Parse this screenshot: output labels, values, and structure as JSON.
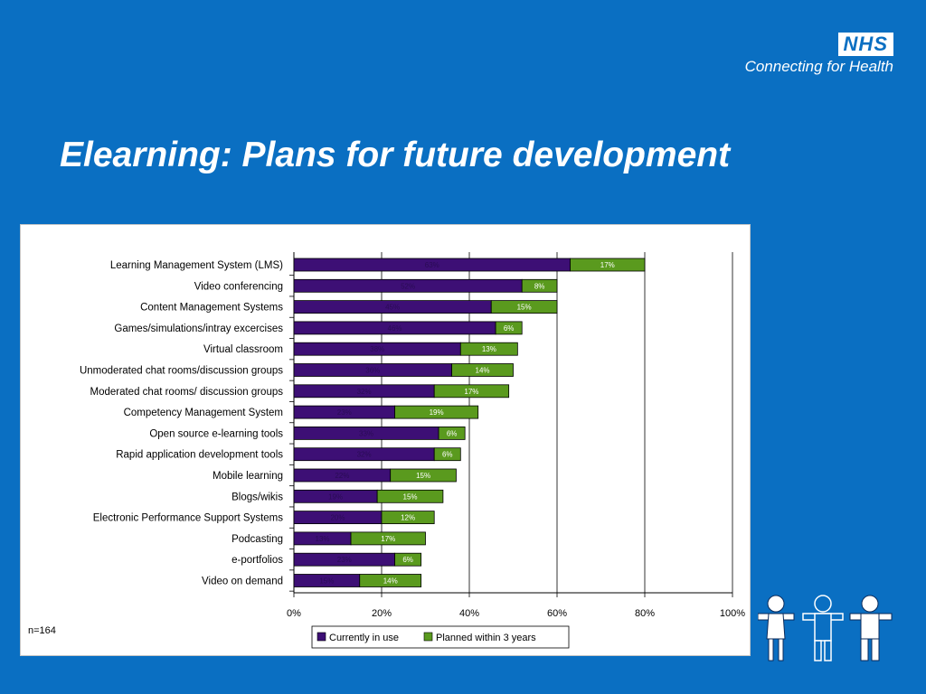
{
  "slide": {
    "title": "Elearning: Plans for future development"
  },
  "brand": {
    "badge": "NHS",
    "tagline": "Connecting for Health"
  },
  "chart_data": {
    "type": "bar",
    "orientation": "horizontal",
    "stacked": true,
    "categories": [
      "Learning Management System (LMS)",
      "Video conferencing",
      "Content Management Systems",
      "Games/simulations/intray excercises",
      "Virtual classroom",
      "Unmoderated chat rooms/discussion groups",
      "Moderated chat rooms/ discussion groups",
      "Competency Management System",
      "Open source e-learning tools",
      "Rapid application development tools",
      "Mobile learning",
      "Blogs/wikis",
      "Electronic Performance Support Systems",
      "Podcasting",
      "e-portfolios",
      "Video on demand"
    ],
    "series": [
      {
        "name": "Currently in use",
        "color": "#3d0f75",
        "values": [
          63,
          52,
          45,
          46,
          38,
          36,
          32,
          23,
          33,
          32,
          22,
          19,
          20,
          13,
          23,
          15
        ],
        "labels": [
          "63%",
          "52%",
          "45%",
          "46%",
          "38%",
          "36%",
          "32%",
          "23%",
          "33%",
          "32%",
          "22%",
          "19%",
          "20%",
          "13%",
          "23%",
          "15%"
        ]
      },
      {
        "name": "Planned within 3 years",
        "color": "#5a9a1e",
        "values": [
          17,
          8,
          15,
          6,
          13,
          14,
          17,
          19,
          6,
          6,
          15,
          15,
          12,
          17,
          6,
          14
        ],
        "labels": [
          "17%",
          "8%",
          "15%",
          "6%",
          "13%",
          "14%",
          "17%",
          "19%",
          "6%",
          "6%",
          "15%",
          "15%",
          "12%",
          "17%",
          "6%",
          "14%"
        ]
      }
    ],
    "xlim": [
      0,
      100
    ],
    "xticks": [
      "0%",
      "20%",
      "40%",
      "60%",
      "80%",
      "100%"
    ],
    "grid": true,
    "legend": "bottom",
    "annotation": "n=164"
  },
  "decor": {
    "figures_icon": "three-people-icon"
  }
}
